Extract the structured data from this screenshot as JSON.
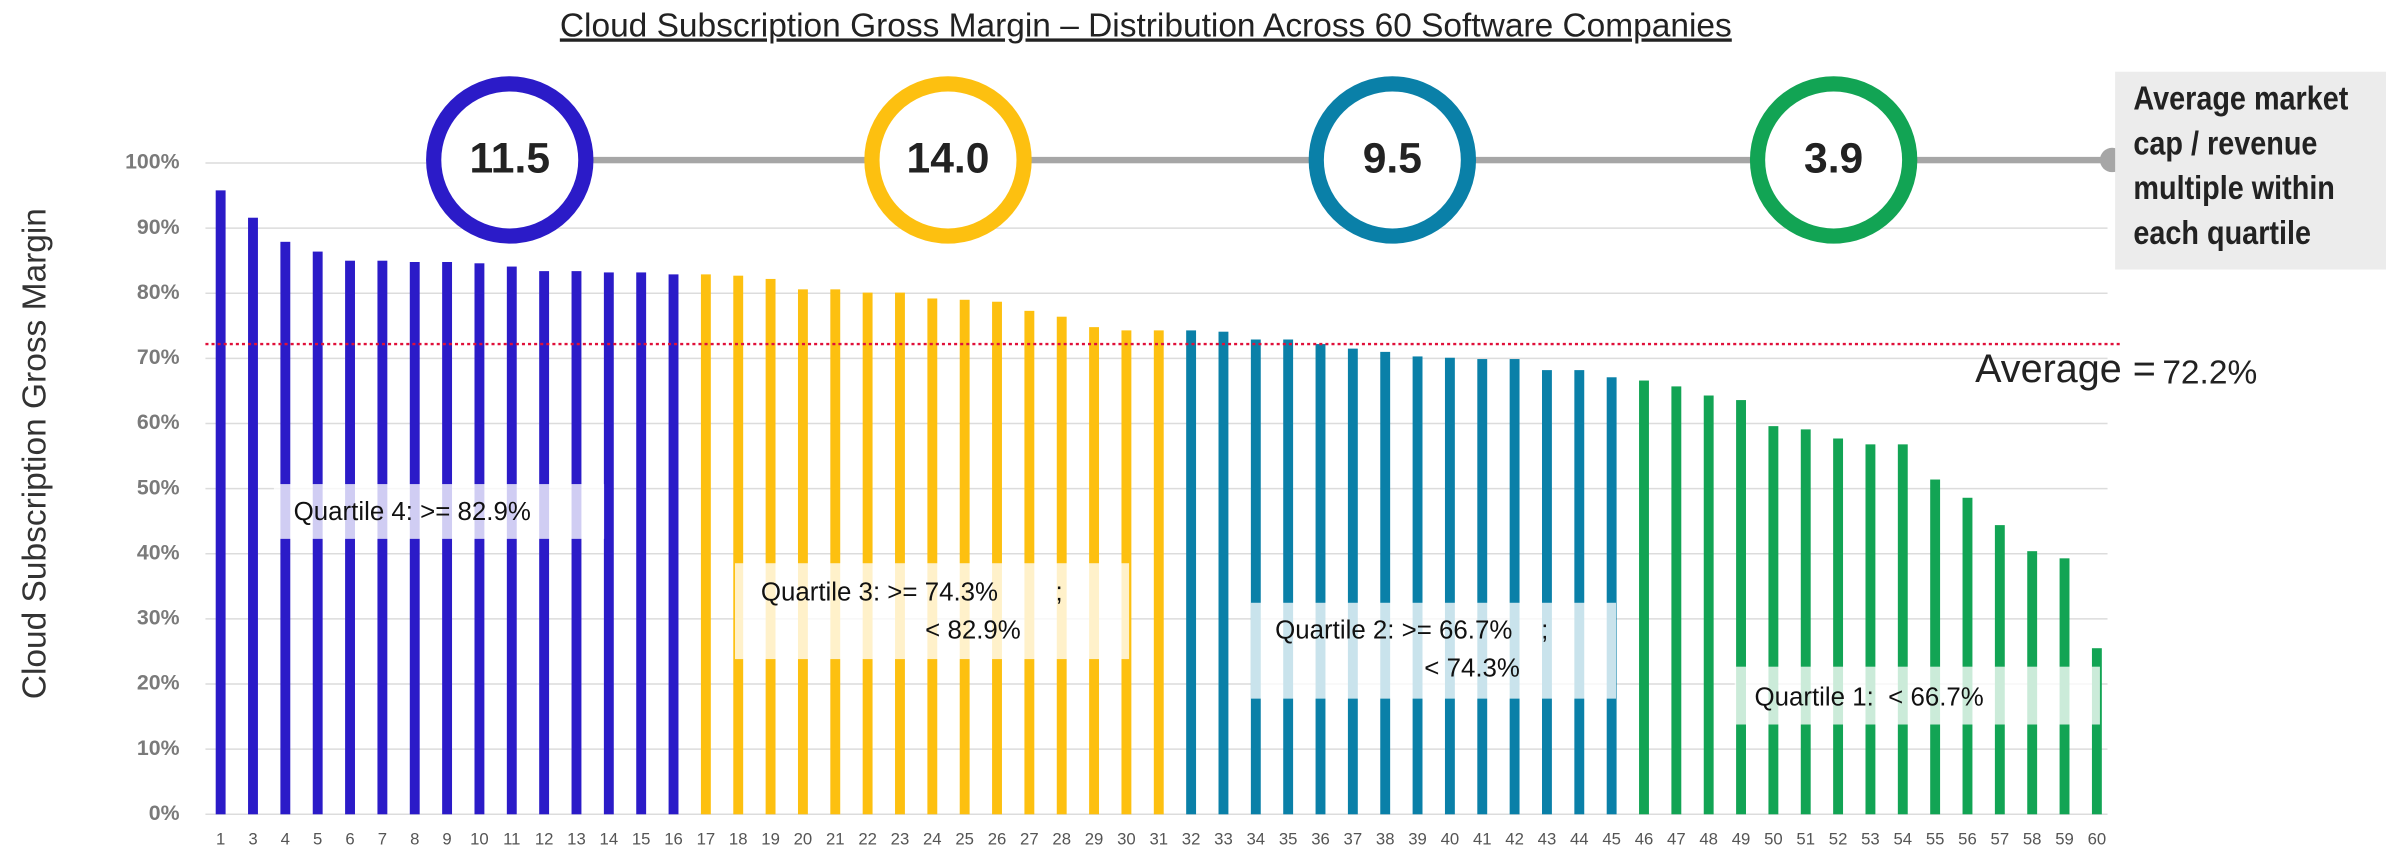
{
  "chart_data": {
    "type": "bar",
    "title": "Cloud Subscription Gross Margin – Distribution Across  60  Software Companies",
    "ylabel": "Cloud Subscription Gross Margin",
    "ylim": [
      0,
      100
    ],
    "yticks": [
      {
        "value": 0,
        "label": "0%"
      },
      {
        "value": 10,
        "label": "10%"
      },
      {
        "value": 20,
        "label": "20%"
      },
      {
        "value": 30,
        "label": "30%"
      },
      {
        "value": 40,
        "label": "40%"
      },
      {
        "value": 50,
        "label": "50%"
      },
      {
        "value": 60,
        "label": "60%"
      },
      {
        "value": 70,
        "label": "70%"
      },
      {
        "value": 80,
        "label": "80%"
      },
      {
        "value": 90,
        "label": "90%"
      },
      {
        "value": 100,
        "label": "100%"
      }
    ],
    "grid": true,
    "series": [
      {
        "color": "#2b1bc8",
        "categories": [
          "1",
          "3",
          "4",
          "5",
          "6",
          "7",
          "8",
          "9",
          "10",
          "11",
          "12",
          "13",
          "14",
          "15",
          "16"
        ],
        "values": [
          95.8,
          91.6,
          87.9,
          86.4,
          85,
          85,
          84.8,
          84.8,
          84.6,
          84.1,
          83.4,
          83.4,
          83.2,
          83.2,
          82.9
        ]
      },
      {
        "color": "#fdc010",
        "categories": [
          "17",
          "18",
          "19",
          "20",
          "21",
          "22",
          "23",
          "24",
          "25",
          "26",
          "27",
          "28",
          "29",
          "30",
          "31"
        ],
        "values": [
          82.9,
          82.7,
          82.2,
          80.6,
          80.6,
          80.1,
          80.1,
          79.2,
          79,
          78.7,
          77.3,
          76.4,
          74.8,
          74.3,
          74.3
        ]
      },
      {
        "color": "#0a80a8",
        "categories": [
          "32",
          "33",
          "34",
          "35",
          "36",
          "37",
          "38",
          "39",
          "40",
          "41",
          "42",
          "43",
          "44",
          "45"
        ],
        "values": [
          74.3,
          74.1,
          72.9,
          72.9,
          72.2,
          71.5,
          71,
          70.3,
          70.1,
          69.9,
          69.9,
          68.2,
          68.2,
          67.1
        ]
      },
      {
        "color": "#12a454",
        "categories": [
          "46",
          "47",
          "48",
          "49",
          "50",
          "51",
          "52",
          "53",
          "54",
          "55",
          "56",
          "57",
          "58",
          "59",
          "60"
        ],
        "values": [
          66.6,
          65.7,
          64.3,
          63.6,
          59.6,
          59.1,
          57.7,
          56.8,
          56.8,
          51.4,
          48.6,
          44.4,
          40.4,
          39.3,
          25.5
        ]
      }
    ],
    "average": {
      "label": "Average =",
      "value": 72.2,
      "value_label": "72.2%",
      "color": "#e0103a"
    },
    "multiples": {
      "values": [
        11.5,
        14,
        9.5,
        3.9
      ],
      "value_labels": [
        "11.5",
        "14.0",
        "9.5",
        "3.9"
      ],
      "colors": [
        "#2b1bc8",
        "#fdc010",
        "#0a80a8",
        "#12a454"
      ],
      "label": [
        "Average market",
        "cap / revenue",
        "multiple within",
        "each quartile"
      ]
    },
    "annotations": [
      {
        "lines": [
          "Quartile 4: >= 82.9%"
        ]
      },
      {
        "lines": [
          "Quartile 3: >= 74.3%        ;",
          "< 82.9%"
        ]
      },
      {
        "lines": [
          "Quartile 2: >= 66.7%    ;",
          "< 74.3%"
        ]
      },
      {
        "lines": [
          "Quartile 1:  < 66.7%"
        ]
      }
    ]
  }
}
